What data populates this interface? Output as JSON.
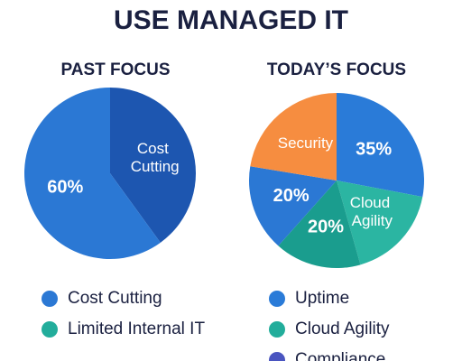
{
  "title": "USE MANAGED IT",
  "chart_data": [
    {
      "type": "pie",
      "title": "PAST FOCUS",
      "values": [
        40,
        60
      ],
      "colors": [
        "#1d56b0",
        "#2b78d4"
      ],
      "categories": [
        "Cost Cutting",
        null
      ],
      "value_labels": [
        null,
        "60%"
      ],
      "legend": [
        {
          "label": "Cost Cutting",
          "color": "#2b78d4"
        },
        {
          "label": "Limited Internal IT",
          "color": "#22ad9b"
        }
      ]
    },
    {
      "type": "pie",
      "title": "TODAY’S FOCUS",
      "values": [
        35,
        22,
        20,
        20,
        28
      ],
      "colors": [
        "#2a7bd8",
        "#2bb5a2",
        "#1a9d8e",
        "#2b78d4",
        "#f68d40"
      ],
      "categories": [
        null,
        "Cloud Agility",
        null,
        null,
        "Security"
      ],
      "value_labels": [
        "35%",
        null,
        "20%",
        "20%",
        null
      ],
      "legend": [
        {
          "label": "Uptime",
          "color": "#2a7bd8"
        },
        {
          "label": "Cloud Agility",
          "color": "#22ad9b"
        },
        {
          "label": "Compliance",
          "color": "#4a55c0"
        }
      ]
    }
  ]
}
